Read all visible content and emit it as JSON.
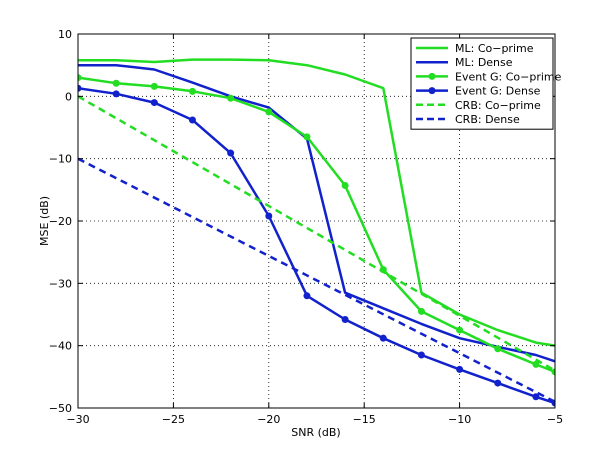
{
  "chart_data": {
    "type": "line",
    "xlabel": "SNR (dB)",
    "ylabel": "MSE (dB)",
    "xlim": [
      -30,
      -5
    ],
    "ylim": [
      -50,
      10
    ],
    "xticks": [
      -30,
      -25,
      -20,
      -15,
      -10,
      -5
    ],
    "xtick_labels": [
      "−30",
      "−25",
      "−20",
      "−15",
      "−10",
      "−5"
    ],
    "yticks": [
      -50,
      -40,
      -30,
      -20,
      -10,
      0,
      10
    ],
    "ytick_labels": [
      "−50",
      "−40",
      "−30",
      "−20",
      "−10",
      "0",
      "10"
    ],
    "grid": true,
    "legend_position": "top-right",
    "series": [
      {
        "name": "ML: Co−prime",
        "color": "#22dd22",
        "style": "solid",
        "marker": "none",
        "x": [
          -30,
          -28,
          -26,
          -24,
          -22,
          -20,
          -18,
          -16,
          -14,
          -12,
          -10,
          -8,
          -6,
          -5
        ],
        "y": [
          5.8,
          5.8,
          5.5,
          5.9,
          5.9,
          5.8,
          5.0,
          3.5,
          1.3,
          -31.5,
          -35,
          -37.5,
          -39.5,
          -40
        ]
      },
      {
        "name": "ML: Dense",
        "color": "#1122cc",
        "style": "solid",
        "marker": "none",
        "x": [
          -30,
          -28,
          -26,
          -24,
          -22,
          -20,
          -18,
          -16,
          -14,
          -12,
          -10,
          -8,
          -6,
          -5
        ],
        "y": [
          5.0,
          5.0,
          4.3,
          2.2,
          0,
          -1.8,
          -6.8,
          -31.5,
          -34,
          -36.5,
          -38.8,
          -40.2,
          -41.5,
          -42.5
        ]
      },
      {
        "name": "Event G: Co−prime",
        "color": "#22dd22",
        "style": "solid",
        "marker": "dot",
        "x": [
          -30,
          -28,
          -26,
          -24,
          -22,
          -20,
          -18,
          -16,
          -14,
          -12,
          -10,
          -8,
          -6,
          -5
        ],
        "y": [
          3.0,
          2.1,
          1.6,
          0.8,
          -0.3,
          -2.5,
          -6.5,
          -14.3,
          -27.8,
          -34.5,
          -37.5,
          -40.5,
          -43,
          -44.2
        ]
      },
      {
        "name": "Event G: Dense",
        "color": "#1122cc",
        "style": "solid",
        "marker": "dot",
        "x": [
          -30,
          -28,
          -26,
          -24,
          -22,
          -20,
          -18,
          -16,
          -14,
          -12,
          -10,
          -8,
          -6,
          -5
        ],
        "y": [
          1.3,
          0.4,
          -1.0,
          -3.8,
          -9.1,
          -19.2,
          -32,
          -35.8,
          -38.8,
          -41.5,
          -43.8,
          -46,
          -48.2,
          -49.2
        ]
      },
      {
        "name": "CRB: Co−prime",
        "color": "#22dd22",
        "style": "dashed",
        "marker": "none",
        "x": [
          -30,
          -5
        ],
        "y": [
          0,
          -44
        ]
      },
      {
        "name": "CRB: Dense",
        "color": "#1122cc",
        "style": "dashed",
        "marker": "none",
        "x": [
          -30,
          -5
        ],
        "y": [
          -10,
          -49
        ]
      }
    ]
  }
}
